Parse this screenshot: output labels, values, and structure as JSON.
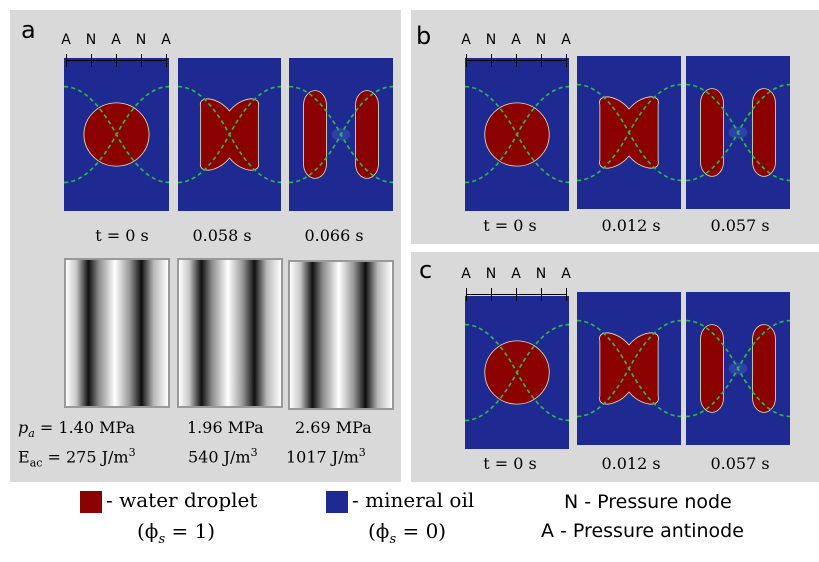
{
  "panels": {
    "a": {
      "letter": "a",
      "anr_labels": [
        "A",
        "N",
        "A",
        "N",
        "A"
      ],
      "times": [
        "t = 0 s",
        "0.058 s",
        "0.066 s"
      ],
      "params": [
        {
          "pa_symbol": "p",
          "pa_sub": "a",
          "pa_value": "= 1.40 MPa",
          "e_symbol": "E",
          "e_sub": "ac",
          "e_value": "= 275 J/m",
          "e_exp": "3"
        },
        {
          "pa_value": "1.96 MPa",
          "e_value": "540 J/m",
          "e_exp": "3"
        },
        {
          "pa_value": "2.69 MPa",
          "e_value": "1017 J/m",
          "e_exp": "3"
        }
      ]
    },
    "b": {
      "letter": "b",
      "anr_labels": [
        "A",
        "N",
        "A",
        "N",
        "A"
      ],
      "times": [
        "t = 0 s",
        "0.012 s",
        "0.057 s"
      ]
    },
    "c": {
      "letter": "c",
      "anr_labels": [
        "A",
        "N",
        "A",
        "N",
        "A"
      ],
      "times": [
        "t = 0 s",
        "0.012 s",
        "0.057 s"
      ]
    }
  },
  "legend": {
    "water_text": "- water droplet",
    "water_phi": "(ϕ",
    "water_phi_sub": "s",
    "water_phi_val": " = 1)",
    "oil_text": "- mineral oil",
    "oil_phi": "(ϕ",
    "oil_phi_sub": "s",
    "oil_phi_val": " = 0)",
    "node_text": "N - Pressure node",
    "antinode_text": "A - Pressure antinode"
  },
  "colors": {
    "water": "#8b0000",
    "oil": "#1e2a92",
    "panel_bg": "#d9d9d9",
    "node_curve": "#2db84a"
  }
}
